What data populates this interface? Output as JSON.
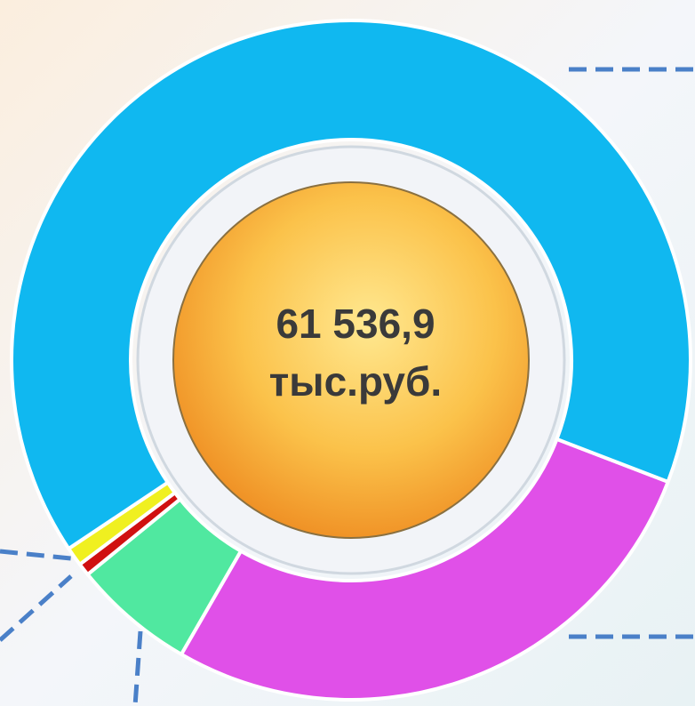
{
  "chart_data": {
    "type": "donut",
    "values": [
      27.5,
      5.8,
      0.6,
      0.9,
      65.2
    ],
    "colors": [
      "#e050e8",
      "#50e8a0",
      "#d01010",
      "#f0f020",
      "#10b8f0"
    ],
    "center_text": [
      "61 536,9",
      "тыс.руб."
    ]
  }
}
